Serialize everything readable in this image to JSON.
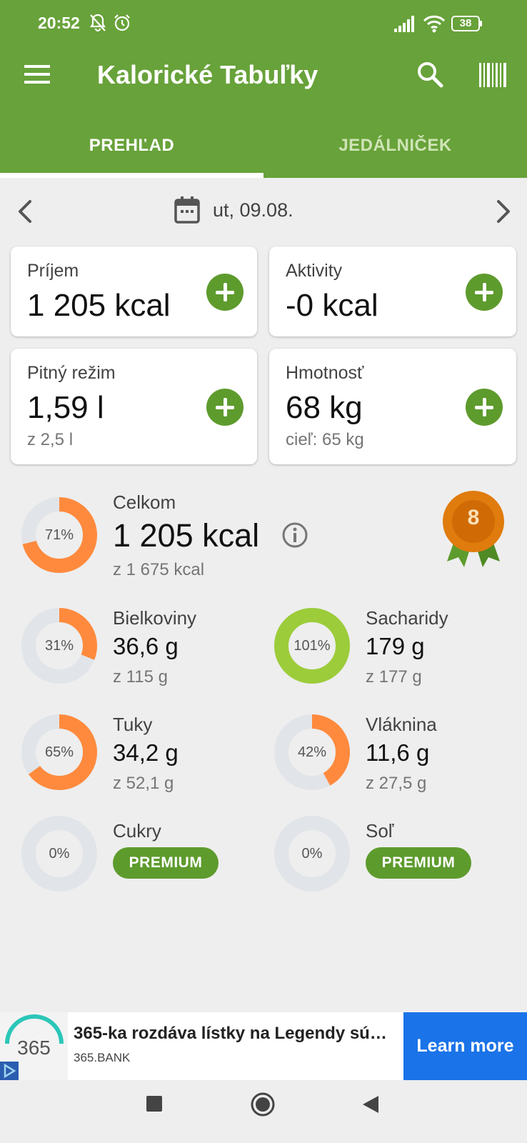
{
  "status_bar": {
    "time": "20:52",
    "battery": "38"
  },
  "app": {
    "title": "Kalorické Tabuľky"
  },
  "tabs": [
    {
      "label": "PREHĽAD",
      "active": true
    },
    {
      "label": "JEDÁLNIČEK",
      "active": false
    }
  ],
  "date": {
    "label": "ut, 09.08."
  },
  "cards": {
    "intake": {
      "label": "Príjem",
      "value": "1 205 kcal"
    },
    "activity": {
      "label": "Aktivity",
      "value": "-0 kcal"
    },
    "drinking": {
      "label": "Pitný režim",
      "value": "1,59 l",
      "sub": "z 2,5 l"
    },
    "weight": {
      "label": "Hmotnosť",
      "value": "68 kg",
      "sub": "cieľ: 65 kg"
    }
  },
  "total": {
    "label": "Celkom",
    "value": "1 205 kcal",
    "sub": "z 1 675 kcal",
    "percent_label": "71%",
    "fraction": 0.71
  },
  "badge": {
    "value": "8"
  },
  "nutrients": {
    "protein": {
      "label": "Bielkoviny",
      "value": "36,6 g",
      "sub": "z 115 g",
      "percent_label": "31%",
      "fraction": 0.31
    },
    "carbs": {
      "label": "Sacharidy",
      "value": "179 g",
      "sub": "z 177 g",
      "percent_label": "101%",
      "fraction": 1.0
    },
    "fat": {
      "label": "Tuky",
      "value": "34,2 g",
      "sub": "z 52,1 g",
      "percent_label": "65%",
      "fraction": 0.65
    },
    "fiber": {
      "label": "Vláknina",
      "value": "11,6 g",
      "sub": "z 27,5 g",
      "percent_label": "42%",
      "fraction": 0.42
    },
    "sugar": {
      "label": "Cukry",
      "premium": "PREMIUM",
      "percent_label": "0%",
      "fraction": 0
    },
    "salt": {
      "label": "Soľ",
      "premium": "PREMIUM",
      "percent_label": "0%",
      "fraction": 0
    }
  },
  "ad": {
    "logo_text": "365",
    "title": "365-ka rozdáva lístky na Legendy sú…",
    "advertiser": "365.BANK",
    "cta": "Learn more"
  },
  "colors": {
    "primary": "#68a23a",
    "button": "#5e9b2d",
    "ring_orange": "#ff8a3d",
    "ring_green": "#9ccc3a",
    "ring_track": "#e1e4e8",
    "ad_cta": "#1a73e8"
  }
}
